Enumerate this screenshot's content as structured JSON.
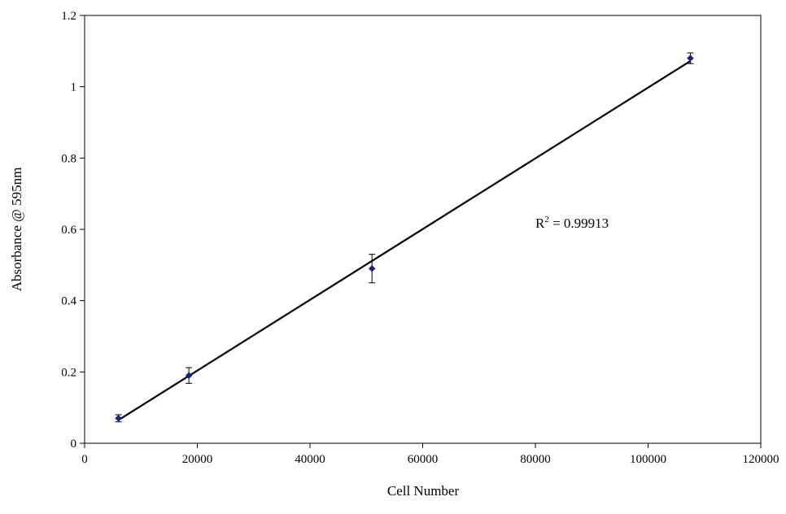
{
  "chart_data": {
    "type": "scatter",
    "title": "",
    "xlabel": "Cell Number",
    "ylabel": "Absorbance @ 595nm",
    "xlim": [
      0,
      120000
    ],
    "ylim": [
      0,
      1.2
    ],
    "x_ticks": [
      0,
      20000,
      40000,
      60000,
      80000,
      100000,
      120000
    ],
    "y_ticks": [
      0,
      0.2,
      0.4,
      0.6,
      0.8,
      1,
      1.2
    ],
    "x_tick_labels": [
      "0",
      "20000",
      "40000",
      "60000",
      "80000",
      "100000",
      "120000"
    ],
    "y_tick_labels": [
      "0",
      "0.2",
      "0.4",
      "0.6",
      "0.8",
      "1",
      "1.2"
    ],
    "grid": false,
    "legend": "none",
    "series": [
      {
        "color": "#1f1f7a",
        "marker": "diamond",
        "points": [
          {
            "x": 6000,
            "y": 0.07,
            "err": 0.01
          },
          {
            "x": 18500,
            "y": 0.19,
            "err": 0.022
          },
          {
            "x": 51000,
            "y": 0.49,
            "err": 0.04
          },
          {
            "x": 107500,
            "y": 1.08,
            "err": 0.015
          }
        ]
      }
    ],
    "trendline": {
      "type": "linear",
      "color": "#000000",
      "from": {
        "x": 6000,
        "y": 0.065
      },
      "to": {
        "x": 107500,
        "y": 1.072
      }
    },
    "annotations": [
      {
        "id": "r-squared",
        "base": "R",
        "sup": "2",
        "rest": " = 0.99913",
        "at": {
          "x": 80000,
          "y": 0.6
        }
      }
    ]
  }
}
